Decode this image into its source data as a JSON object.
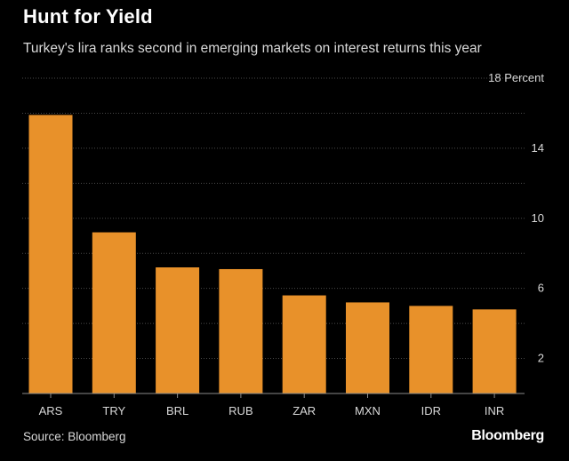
{
  "header": {
    "title": "Hunt for Yield",
    "subtitle": "Turkey's lira ranks second in emerging markets on interest returns this year"
  },
  "footer": {
    "source": "Source: Bloomberg",
    "brand": "Bloomberg"
  },
  "colors": {
    "background": "#000000",
    "bar": "#e8912a",
    "grid": "#4a4a4a",
    "axis": "#8a8a8a"
  },
  "chart_data": {
    "type": "bar",
    "title": "Hunt for Yield",
    "subtitle": "Turkey's lira ranks second in emerging markets on interest returns this year",
    "xlabel": "",
    "ylabel": "Percent",
    "unit_label": "18 Percent",
    "ylim": [
      0,
      18
    ],
    "yticks": [
      2,
      6,
      10,
      14
    ],
    "grid": true,
    "categories": [
      "ARS",
      "TRY",
      "BRL",
      "RUB",
      "ZAR",
      "MXN",
      "IDR",
      "INR"
    ],
    "values": [
      15.9,
      9.2,
      7.2,
      7.1,
      5.6,
      5.2,
      5.0,
      4.8
    ]
  }
}
